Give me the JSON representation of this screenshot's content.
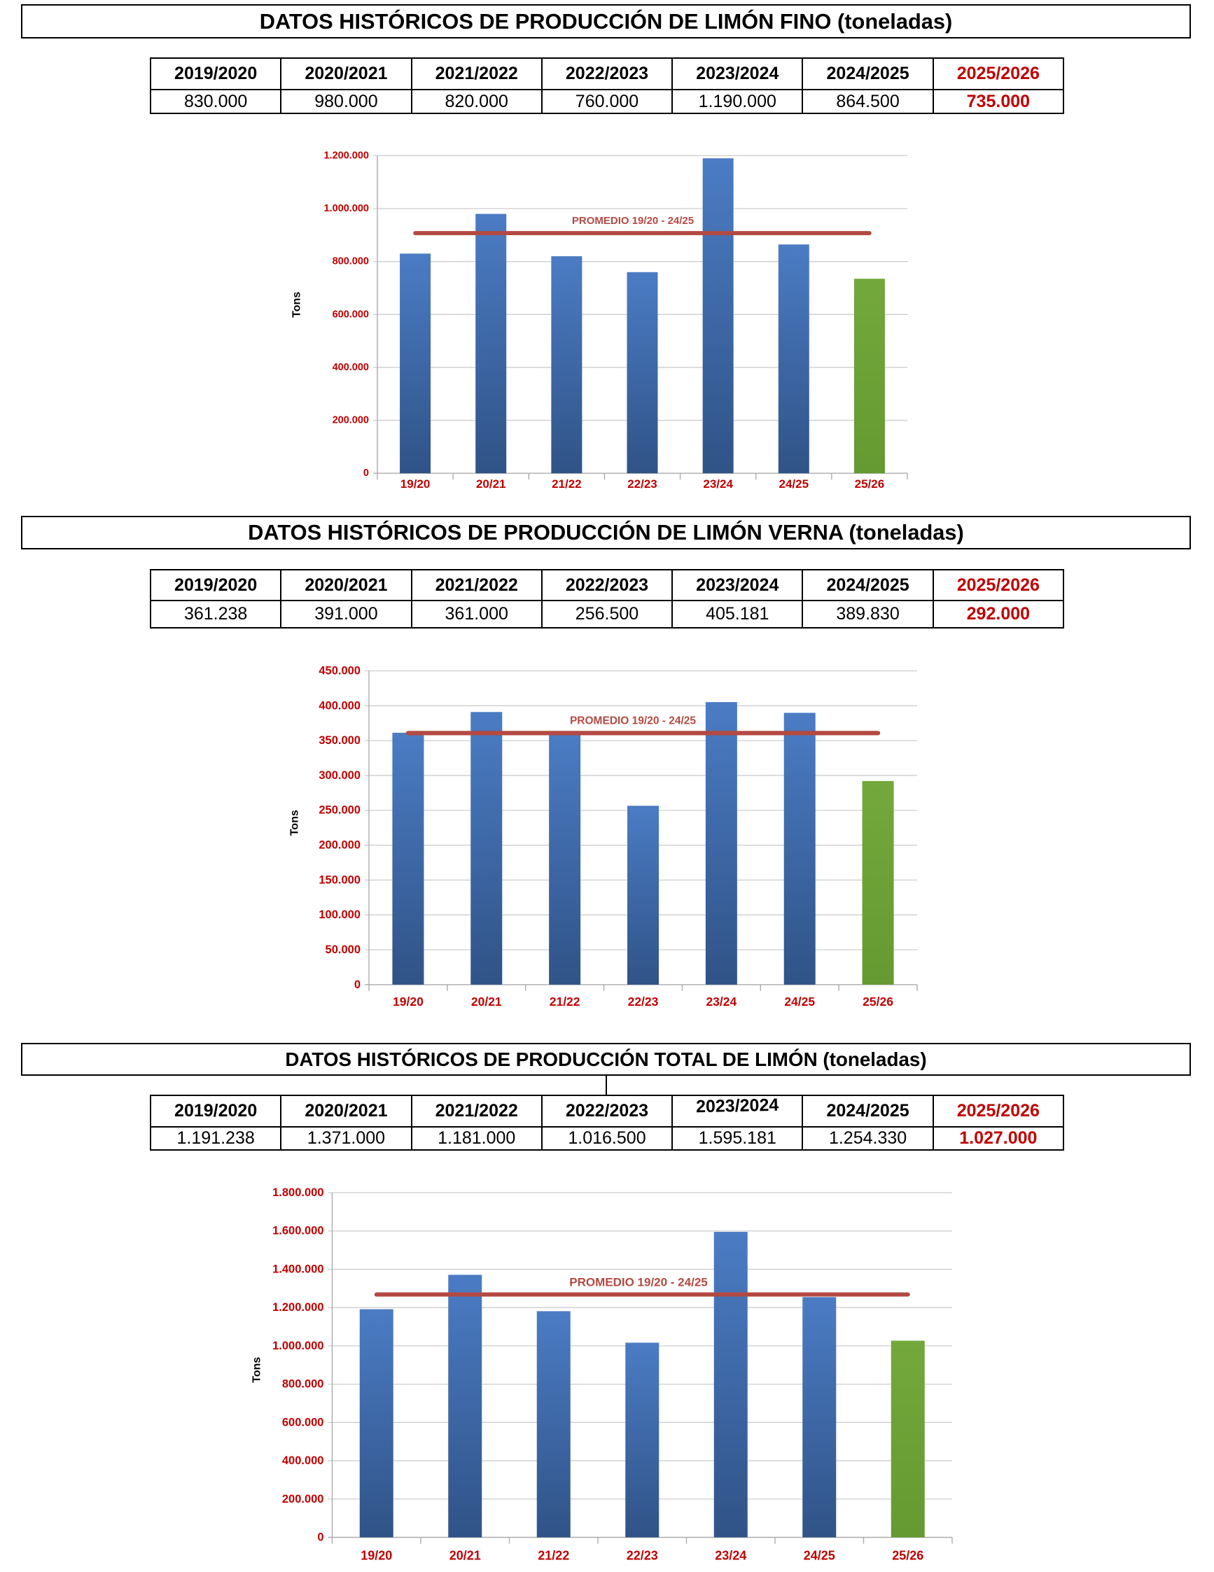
{
  "report": {
    "language": "es",
    "unit_note": "toneladas"
  },
  "colors": {
    "accent_red": "#C00000",
    "average_line_red": "#B34A42",
    "bar_blue_top": "#4B7CC4",
    "bar_blue_bottom": "#305387",
    "bar_green_top": "#73A83C",
    "bar_green_bottom": "#649A31",
    "gridline_gray": "#CDCDCD",
    "axis_gray": "#ABABAB",
    "table_border_black": "#000000"
  },
  "sections": [
    {
      "title": "DATOS HISTÓRICOS DE PRODUCCIÓN DE LIMÓN FINO (toneladas)",
      "table": {
        "headers": [
          "2019/2020",
          "2020/2021",
          "2021/2022",
          "2022/2023",
          "2023/2024",
          "2024/2025",
          "2025/2026"
        ],
        "values": [
          "830.000",
          "980.000",
          "820.000",
          "760.000",
          "1.190.000",
          "864.500",
          "735.000"
        ]
      }
    },
    {
      "title": "DATOS HISTÓRICOS DE PRODUCCIÓN DE LIMÓN VERNA (toneladas)",
      "table": {
        "headers": [
          "2019/2020",
          "2020/2021",
          "2021/2022",
          "2022/2023",
          "2023/2024",
          "2024/2025",
          "2025/2026"
        ],
        "values": [
          "361.238",
          "391.000",
          "361.000",
          "256.500",
          "405.181",
          "389.830",
          "292.000"
        ]
      }
    },
    {
      "title": "DATOS HISTÓRICOS DE PRODUCCIÓN TOTAL DE LIMÓN (toneladas)",
      "table": {
        "headers": [
          "2019/2020",
          "2020/2021",
          "2021/2022",
          "2022/2023",
          "2023/2024",
          "2024/2025",
          "2025/2026"
        ],
        "values": [
          "1.191.238",
          "1.371.000",
          "1.181.000",
          "1.016.500",
          "1.595.181",
          "1.254.330",
          "1.027.000"
        ]
      }
    }
  ],
  "chart_data": [
    {
      "type": "bar",
      "title": "DATOS HISTÓRICOS DE PRODUCCIÓN DE LIMÓN FINO (toneladas)",
      "categories": [
        "19/20",
        "20/21",
        "21/22",
        "22/23",
        "23/24",
        "24/25",
        "25/26"
      ],
      "values": [
        830000,
        980000,
        820000,
        760000,
        1190000,
        864500,
        735000
      ],
      "bar_roles": [
        "history",
        "history",
        "history",
        "history",
        "history",
        "history",
        "projection"
      ],
      "xlabel": "",
      "ylabel": "Tons",
      "ylim": [
        0,
        1200000
      ],
      "ytick_step": 200000,
      "ytick_labels": [
        "0",
        "200.000",
        "400.000",
        "600.000",
        "800.000",
        "1.000.000",
        "1.200.000"
      ],
      "grid": true,
      "legend": false,
      "average_line": {
        "label": "PROMEDIO 19/20 - 24/25",
        "value": 907417,
        "from_category": "19/20",
        "to_category": "25/26"
      }
    },
    {
      "type": "bar",
      "title": "DATOS HISTÓRICOS DE PRODUCCIÓN DE LIMÓN VERNA (toneladas)",
      "categories": [
        "19/20",
        "20/21",
        "21/22",
        "22/23",
        "23/24",
        "24/25",
        "25/26"
      ],
      "values": [
        361238,
        391000,
        361000,
        256500,
        405181,
        389830,
        292000
      ],
      "bar_roles": [
        "history",
        "history",
        "history",
        "history",
        "history",
        "history",
        "projection"
      ],
      "xlabel": "",
      "ylabel": "Tons",
      "ylim": [
        0,
        450000
      ],
      "ytick_step": 50000,
      "ytick_labels": [
        "0",
        "50.000",
        "100.000",
        "150.000",
        "200.000",
        "250.000",
        "300.000",
        "350.000",
        "400.000",
        "450.000"
      ],
      "grid": true,
      "legend": false,
      "average_line": {
        "label": "PROMEDIO 19/20 - 24/25",
        "value": 360792,
        "from_category": "19/20",
        "to_category": "25/26"
      }
    },
    {
      "type": "bar",
      "title": "DATOS HISTÓRICOS DE PRODUCCIÓN TOTAL DE LIMÓN (toneladas)",
      "categories": [
        "19/20",
        "20/21",
        "21/22",
        "22/23",
        "23/24",
        "24/25",
        "25/26"
      ],
      "values": [
        1191238,
        1371000,
        1181000,
        1016500,
        1595181,
        1254330,
        1027000
      ],
      "bar_roles": [
        "history",
        "history",
        "history",
        "history",
        "history",
        "history",
        "projection"
      ],
      "xlabel": "",
      "ylabel": "Tons",
      "ylim": [
        0,
        1800000
      ],
      "ytick_step": 200000,
      "ytick_labels": [
        "0",
        "200.000",
        "400.000",
        "600.000",
        "800.000",
        "1.000.000",
        "1.200.000",
        "1.400.000",
        "1.600.000",
        "1.800.000"
      ],
      "grid": true,
      "legend": false,
      "average_line": {
        "label": "PROMEDIO 19/20 - 24/25",
        "value": 1268208,
        "from_category": "19/20",
        "to_category": "25/26"
      }
    }
  ]
}
